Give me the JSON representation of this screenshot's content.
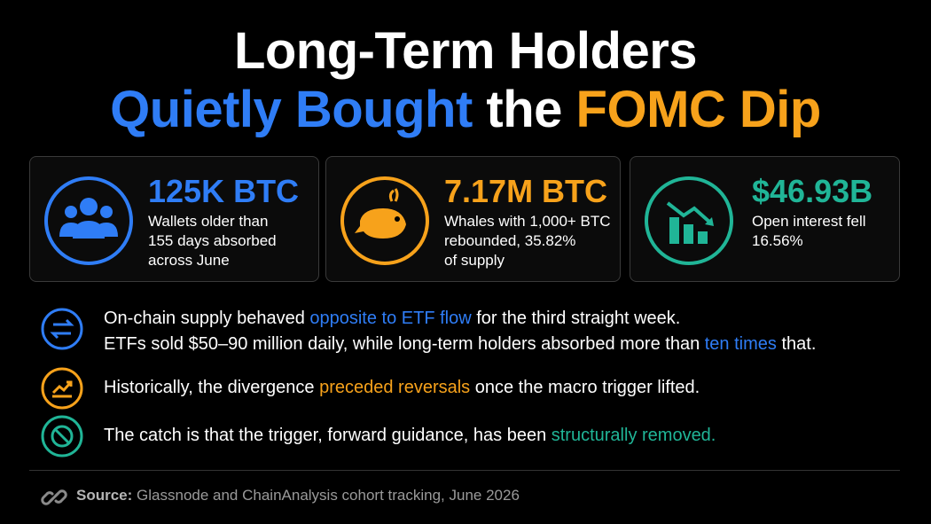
{
  "header": {
    "title_line1": "Long-Term Holders",
    "title_line2": [
      "Quietly Bought",
      " the ",
      "FOMC Dip"
    ]
  },
  "cards": [
    {
      "value": "125K BTC",
      "lines": [
        "Wallets older than",
        "155 days absorbed",
        "across June"
      ]
    },
    {
      "value": "7.17M BTC",
      "lines": [
        "Whales with 1,000+ BTC",
        "rebounded, 35.82%",
        "of supply"
      ]
    },
    {
      "value": "$46.93B",
      "lines": [
        "Open interest fell",
        "16.56%"
      ]
    }
  ],
  "bullets": [
    {
      "lines": [
        [
          "On-chain supply behaved ",
          "opposite to ETF flow",
          " for the third straight week."
        ],
        [
          "ETFs sold $50–90 million daily, while long-term holders absorbed more than ",
          "ten times",
          " that."
        ]
      ]
    },
    {
      "lines": [
        [
          "Historically, the divergence ",
          "preceded reversals",
          " once the macro trigger lifted."
        ]
      ]
    },
    {
      "lines": [
        [
          "The catch is that the trigger, forward guidance, has been ",
          "structurally removed."
        ]
      ]
    }
  ],
  "source": {
    "label": "Source:",
    "text": "Glassnode and ChainAnalysis cohort tracking, June 2026"
  }
}
